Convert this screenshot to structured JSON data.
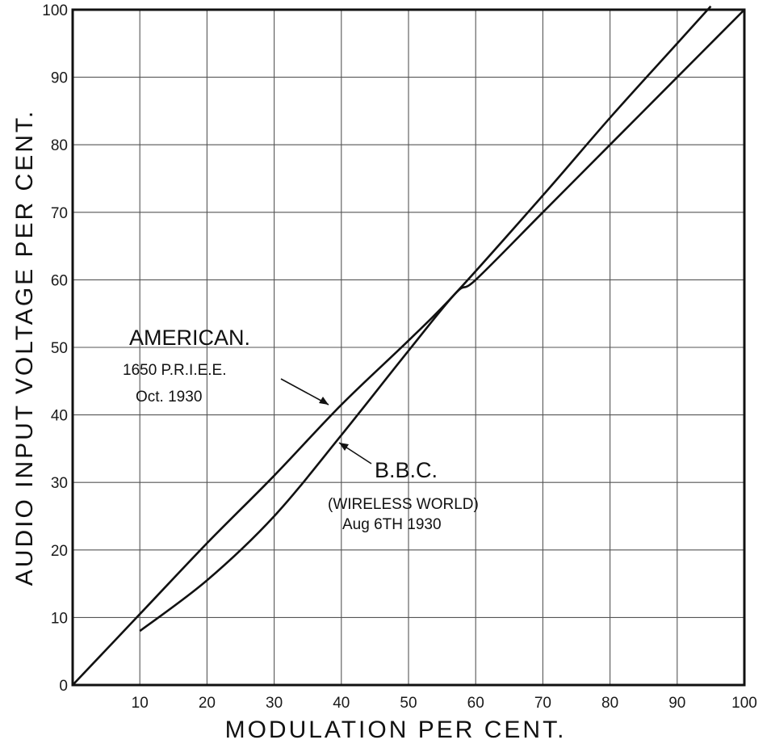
{
  "chart_data": {
    "type": "line",
    "xlabel": "MODULATION PER CENT.",
    "ylabel": "AUDIO INPUT VOLTAGE PER CENT.",
    "xlim": [
      0,
      100
    ],
    "ylim": [
      0,
      100
    ],
    "x_ticks": [
      "10",
      "20",
      "30",
      "40",
      "50",
      "60",
      "70",
      "80",
      "90",
      "100"
    ],
    "y_ticks": [
      "0",
      "10",
      "20",
      "30",
      "40",
      "50",
      "60",
      "70",
      "80",
      "90",
      "100"
    ],
    "grid": true,
    "series": [
      {
        "name": "AMERICAN.",
        "points": [
          [
            0,
            0
          ],
          [
            10,
            10.5
          ],
          [
            20,
            21
          ],
          [
            30,
            31
          ],
          [
            40,
            41.5
          ],
          [
            50,
            51
          ],
          [
            57,
            58
          ],
          [
            70,
            72.5
          ],
          [
            80,
            84
          ],
          [
            90,
            95
          ],
          [
            95,
            100.5
          ]
        ]
      },
      {
        "name": "B.B.C.",
        "points": [
          [
            10,
            8
          ],
          [
            20,
            15.5
          ],
          [
            30,
            25
          ],
          [
            40,
            37
          ],
          [
            50,
            49.5
          ],
          [
            57,
            58
          ],
          [
            60,
            60
          ],
          [
            70,
            70
          ],
          [
            80,
            80
          ],
          [
            90,
            90
          ],
          [
            100,
            100
          ]
        ]
      }
    ],
    "annotations": [
      {
        "series": "AMERICAN.",
        "title": "AMERICAN.",
        "lines": [
          "1650 P.R.I.E.E.",
          "Oct. 1930"
        ]
      },
      {
        "series": "B.B.C.",
        "title": "B.B.C.",
        "lines": [
          "(WIRELESS WORLD)",
          "Aug 6TH 1930"
        ]
      }
    ]
  }
}
